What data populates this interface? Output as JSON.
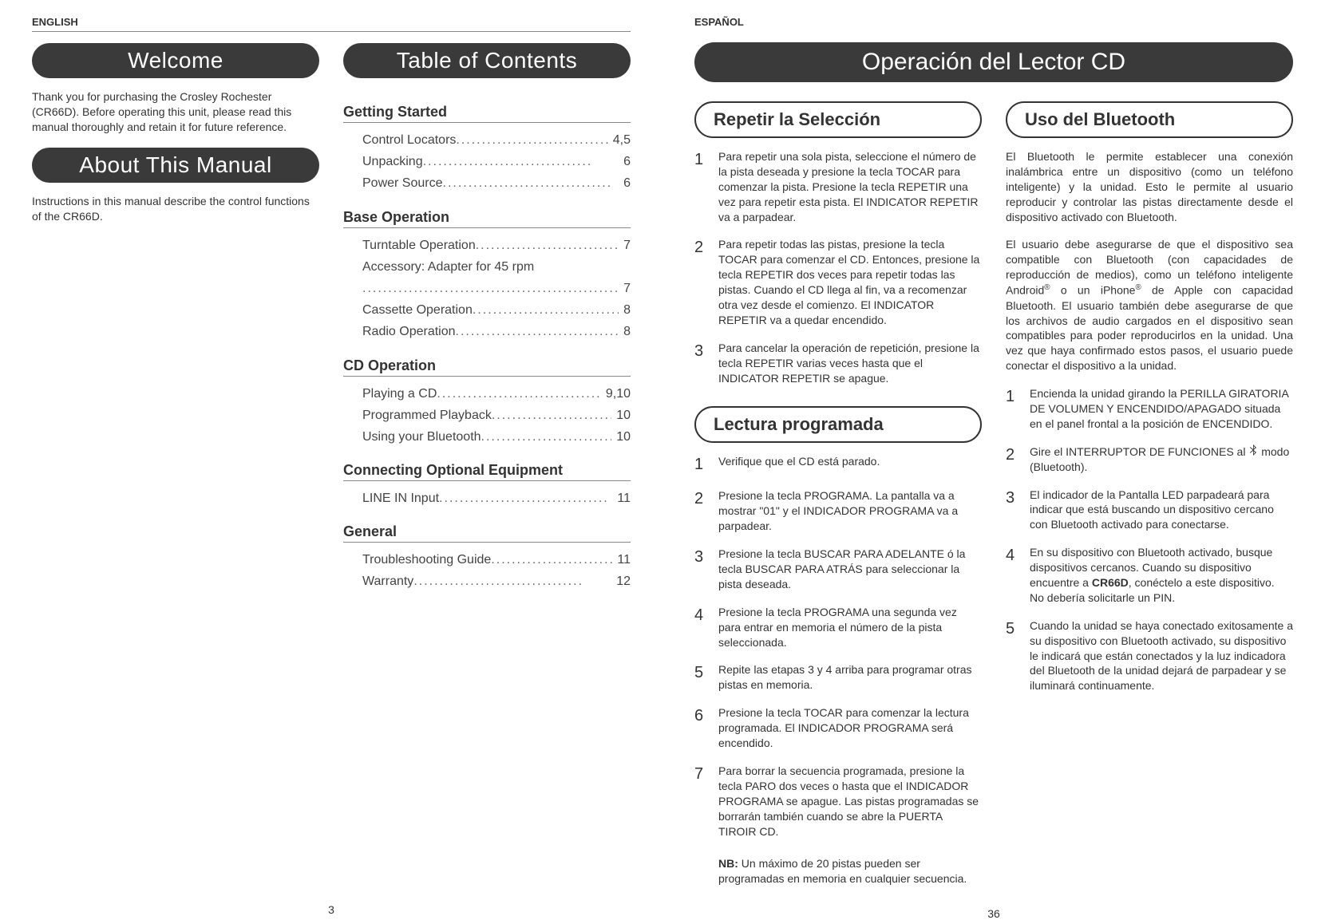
{
  "left": {
    "lang": "ENGLISH",
    "welcome": {
      "title": "Welcome",
      "text": "Thank you for purchasing the Crosley Rochester (CR66D). Before operating this unit, please read this manual thoroughly and retain it for future reference."
    },
    "about": {
      "title": "About This Manual",
      "text": "Instructions in this manual describe the control functions of the CR66D."
    },
    "toc": {
      "title": "Table of Contents",
      "sections": [
        {
          "heading": "Getting Started",
          "items": [
            {
              "label": "Control Locators",
              "page": "4,5"
            },
            {
              "label": "Unpacking",
              "page": "6"
            },
            {
              "label": "Power Source",
              "page": "6"
            }
          ]
        },
        {
          "heading": "Base Operation",
          "items": [
            {
              "label": "Turntable Operation",
              "page": "7"
            },
            {
              "label": "Accessory: Adapter for 45 rpm",
              "page": "7",
              "wrap": true
            },
            {
              "label": "Cassette Operation",
              "page": "8"
            },
            {
              "label": "Radio Operation",
              "page": "8"
            }
          ]
        },
        {
          "heading": "CD Operation",
          "items": [
            {
              "label": "Playing a CD",
              "page": "9,10"
            },
            {
              "label": "Programmed Playback",
              "page": "10"
            },
            {
              "label": "Using your Bluetooth",
              "page": "10"
            }
          ]
        },
        {
          "heading": "Connecting Optional Equipment",
          "items": [
            {
              "label": "LINE IN Input",
              "page": "11"
            }
          ]
        },
        {
          "heading": "General",
          "items": [
            {
              "label": "Troubleshooting Guide",
              "page": "11"
            },
            {
              "label": "Warranty",
              "page": "12"
            }
          ]
        }
      ]
    },
    "pageNumber": "3"
  },
  "right": {
    "lang": "ESPAÑOL",
    "title": "Operación del Lector CD",
    "repeat": {
      "heading": "Repetir la Selección",
      "steps": [
        "Para repetir una sola pista, seleccione el número de la pista deseada y presione la tecla TOCAR para comenzar la pista. Presione la tecla REPETIR una vez para repetir esta pista. El INDICATOR REPETIR va a parpadear.",
        "Para repetir todas las pistas, presione la tecla TOCAR para comenzar el CD. Entonces, presione la tecla REPETIR dos veces para repetir todas las pistas. Cuando el CD llega al fin, va a recomenzar otra vez desde el comienzo. El INDICATOR REPETIR va a quedar encendido.",
        "Para cancelar la operación de repetición, presione la tecla REPETIR varias veces hasta que el INDICATOR REPETIR se apague."
      ]
    },
    "programmed": {
      "heading": "Lectura programada",
      "steps": [
        "Verifique que el CD está parado.",
        "Presione la tecla PROGRAMA. La pantalla va a mostrar \"01\" y el INDICADOR PROGRAMA va a parpadear.",
        "Presione la tecla BUSCAR PARA ADELANTE ó la tecla BUSCAR PARA ATRÁS para seleccionar la pista deseada.",
        "Presione la tecla PROGRAMA una segunda vez para entrar en memoria el número de la pista seleccionada.",
        "Repite las etapas 3 y 4 arriba para programar otras pistas en memoria.",
        "Presione la tecla TOCAR para comenzar la lectura programada. El INDICADOR PROGRAMA será encendido.",
        "Para borrar la secuencia programada, presione la tecla PARO dos veces o hasta que el INDICADOR PROGRAMA se apague. Las pistas programadas se borrarán también cuando se abre la PUERTA TIROIR CD."
      ],
      "note_label": "NB:",
      "note": "Un máximo de 20 pistas pueden ser programadas en memoria en cualquier secuencia."
    },
    "bluetooth": {
      "heading": "Uso del Bluetooth",
      "intro1": "El Bluetooth le permite establecer una conexión inalámbrica entre un dispositivo (como un teléfono inteligente) y la unidad. Esto le permite al usuario reproducir y controlar las pistas directamente desde el dispositivo activado con Bluetooth.",
      "intro2a": "El usuario debe asegurarse de que el dispositivo sea compatible con Bluetooth (con capacidades de reproducción de medios), como un teléfono",
      "intro2b_pre": "inteligente Android",
      "intro2b_mid": " o un iPhone",
      "intro2b_post": " de Apple con capacidad Bluetooth. El usuario también debe asegurarse de que los archivos de audio cargados en el dispositivo sean compatibles para poder reproducirlos en la unidad. Una vez que haya confirmado estos pasos, el usuario puede conectar el dispositivo a la unidad.",
      "steps": [
        "Encienda la unidad girando la PERILLA GIRATORIA DE VOLUMEN Y ENCENDIDO/APAGADO situada en el panel frontal a la posición de ENCENDIDO.",
        "Gire el INTERRUPTOR DE FUNCIONES al  ICON modo (Bluetooth).",
        "El indicador de la Pantalla LED parpadeará para indicar que está buscando un dispositivo cercano con Bluetooth activado para conectarse.",
        "En su dispositivo con Bluetooth activado, busque dispositivos cercanos. Cuando su dispositivo encuentre a CR66D, conéctelo a este dispositivo.\nNo debería solicitarle un PIN.",
        "Cuando la unidad se haya conectado exitosamente a su dispositivo con Bluetooth activado, su dispositivo le indicará que están conectados y la luz indicadora del Bluetooth de la unidad dejará de parpadear y se iluminará continuamente."
      ],
      "device_bold": "CR66D"
    },
    "pageNumber": "36"
  }
}
